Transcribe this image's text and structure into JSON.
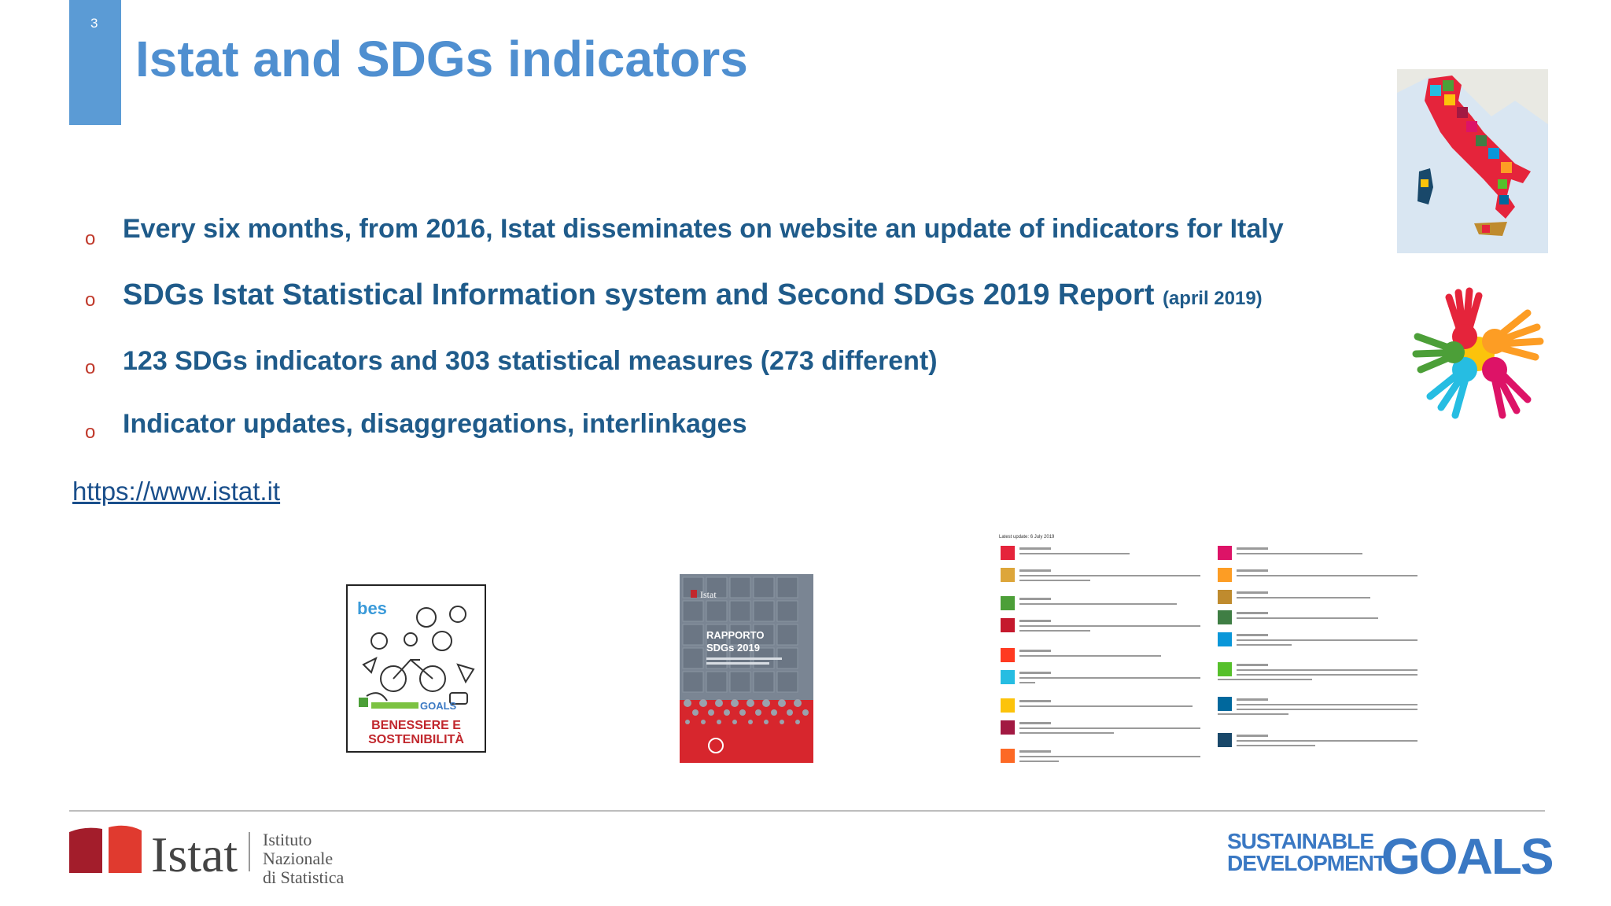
{
  "slide": {
    "number": "3",
    "title": "Istat and SDGs indicators"
  },
  "bullets": [
    {
      "marker": "o",
      "text": "Every six months, from 2016, Istat disseminates on website an update of indicators for Italy"
    },
    {
      "marker": "o",
      "text": "SDGs Istat Statistical Information system  and Second SDGs 2019 Report ",
      "note": "(april 2019)"
    },
    {
      "marker": "o",
      "text": "123 SDGs indicators and 303  statistical measures  (273 different)"
    },
    {
      "marker": "o",
      "text": "Indicator updates, disaggregations, interlinkages"
    }
  ],
  "link": {
    "text": "https://www.istat.it"
  },
  "images": {
    "bes_cover": {
      "brand": "bes",
      "goals_word": "GOALS",
      "title_line1": "BENESSERE E",
      "title_line2": "SOSTENIBILITÀ"
    },
    "report_cover": {
      "brand": "Istat",
      "title_line1": "RAPPORTO",
      "title_line2": "SDGs 2019"
    },
    "goals_list": {
      "header": "Latest update: 6 July 2019"
    }
  },
  "footer": {
    "istat_logo": {
      "word": "Istat",
      "sub_line1": "Istituto Nazionale",
      "sub_line2": "di Statistica"
    },
    "sdg_logo": {
      "line1": "SUSTAINABLE",
      "line2": "DEVELOPMENT",
      "big": "GOALS"
    }
  },
  "colors": {
    "accent": "#5b9bd5",
    "title": "#4f8fd0",
    "body_text": "#1f5b8a",
    "bullet_marker": "#c0392b",
    "link": "#1a4f8b",
    "istat_red": "#c1272d",
    "sdg_blue": "#3a78c3"
  },
  "icons": [
    "italy-sdg-map-image",
    "colorful-hands-image",
    "bes-report-cover",
    "sdgs-2019-report-cover",
    "sdg-goals-list-image"
  ]
}
